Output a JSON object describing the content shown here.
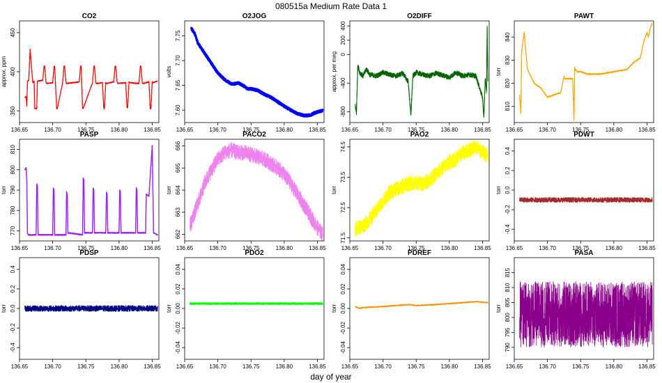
{
  "figure": {
    "title": "080515a   Medium Rate Data 1",
    "xlabel": "day of year"
  },
  "chart_data": [
    {
      "type": "line",
      "title": "CO2",
      "ylabel": "approx. ppm",
      "color": "#ff0000",
      "xlim": [
        136.65,
        136.86
      ],
      "ylim": [
        335,
        465
      ],
      "yticks": [
        350,
        400,
        450
      ],
      "ytick_labels": [
        "350",
        "400",
        "450"
      ],
      "xticks": [
        136.65,
        136.7,
        136.75,
        136.8,
        136.85
      ],
      "xtick_labels": [
        "136.65",
        "136.70",
        "136.75",
        "136.80",
        "136.85"
      ],
      "x": [
        136.658,
        136.66,
        136.661,
        136.662,
        136.664,
        136.666,
        136.67,
        136.672,
        136.673,
        136.676,
        136.677,
        136.685,
        136.687,
        136.688,
        136.69,
        136.691,
        136.7,
        136.702,
        136.703,
        136.706,
        136.707,
        136.715,
        136.717,
        136.718,
        136.72,
        136.721,
        136.74,
        136.742,
        136.743,
        136.745,
        136.746,
        136.76,
        136.762,
        136.763,
        136.765,
        136.766,
        136.775,
        136.777,
        136.778,
        136.78,
        136.781,
        136.792,
        136.794,
        136.795,
        136.797,
        136.798,
        136.81,
        136.812,
        136.813,
        136.815,
        136.816,
        136.83,
        136.832,
        136.833,
        136.835,
        136.836,
        136.845,
        136.847,
        136.848,
        136.85,
        136.851,
        136.858
      ],
      "y": [
        367,
        368,
        356,
        388,
        389,
        429,
        386,
        388,
        353,
        353,
        388,
        389,
        407,
        407,
        386,
        385,
        386,
        407,
        407,
        353,
        353,
        386,
        407,
        407,
        386,
        385,
        387,
        407,
        407,
        353,
        353,
        386,
        407,
        407,
        386,
        385,
        386,
        353,
        353,
        386,
        385,
        387,
        407,
        407,
        387,
        385,
        386,
        354,
        354,
        387,
        386,
        385,
        407,
        407,
        386,
        385,
        387,
        353,
        353,
        387,
        386,
        388
      ]
    },
    {
      "type": "line",
      "title": "O2JOG",
      "ylabel": "volts",
      "color": "#0000ff",
      "xlim": [
        136.65,
        136.86
      ],
      "ylim": [
        7.575,
        7.78
      ],
      "yticks": [
        7.6,
        7.65,
        7.7,
        7.75
      ],
      "ytick_labels": [
        "7.60",
        "7.65",
        "7.70",
        "7.75"
      ],
      "xticks": [
        136.65,
        136.7,
        136.75,
        136.8,
        136.85
      ],
      "xtick_labels": [
        "136.65",
        "136.70",
        "136.75",
        "136.80",
        "136.85"
      ],
      "x": [
        136.66,
        136.665,
        136.67,
        136.68,
        136.69,
        136.7,
        136.71,
        136.72,
        136.725,
        136.73,
        136.735,
        136.74,
        136.745,
        136.75,
        136.76,
        136.77,
        136.78,
        136.79,
        136.8,
        136.81,
        136.82,
        136.83,
        136.84,
        136.845,
        136.85,
        136.855,
        136.858
      ],
      "y": [
        7.765,
        7.755,
        7.735,
        7.715,
        7.695,
        7.675,
        7.662,
        7.653,
        7.653,
        7.655,
        7.652,
        7.648,
        7.643,
        7.643,
        7.64,
        7.632,
        7.626,
        7.617,
        7.608,
        7.6,
        7.593,
        7.589,
        7.59,
        7.594,
        7.596,
        7.598,
        7.599
      ]
    },
    {
      "type": "line",
      "title": "O2DIFF",
      "ylabel": "approx. per meg",
      "color": "#006400",
      "xlim": [
        136.65,
        136.86
      ],
      "ylim": [
        -950,
        470
      ],
      "yticks": [
        -800,
        -400,
        0,
        200,
        400
      ],
      "ytick_labels": [
        "-800",
        "-400",
        "0",
        "200",
        "400"
      ],
      "xticks": [
        136.65,
        136.7,
        136.75,
        136.8,
        136.85
      ],
      "xtick_labels": [
        "136.65",
        "136.70",
        "136.75",
        "136.80",
        "136.85"
      ],
      "x": [
        136.658,
        136.66,
        136.662,
        136.665,
        136.67,
        136.675,
        136.68,
        136.69,
        136.7,
        136.71,
        136.72,
        136.73,
        136.738,
        136.742,
        136.745,
        136.75,
        136.76,
        136.77,
        136.78,
        136.79,
        136.8,
        136.81,
        136.82,
        136.83,
        136.84,
        136.85,
        136.852,
        136.854,
        136.856,
        136.857,
        136.858
      ],
      "y": [
        -700,
        -820,
        -150,
        -250,
        -300,
        -200,
        -280,
        -300,
        -250,
        -280,
        -300,
        -260,
        -380,
        -850,
        -300,
        -250,
        -280,
        -300,
        -260,
        -290,
        -320,
        -250,
        -300,
        -280,
        -300,
        -600,
        -880,
        -350,
        -500,
        380,
        -350
      ]
    },
    {
      "type": "line",
      "title": "PAWT",
      "ylabel": "torr",
      "color": "#ffa500",
      "xlim": [
        136.65,
        136.86
      ],
      "ylim": [
        803,
        847
      ],
      "yticks": [
        810,
        820,
        830,
        840
      ],
      "ytick_labels": [
        "810",
        "820",
        "830",
        "840"
      ],
      "xticks": [
        136.65,
        136.7,
        136.75,
        136.8,
        136.85
      ],
      "xtick_labels": [
        "136.65",
        "136.70",
        "136.75",
        "136.80",
        "136.85"
      ],
      "x": [
        136.658,
        136.66,
        136.661,
        136.663,
        136.665,
        136.667,
        136.67,
        136.68,
        136.69,
        136.7,
        136.71,
        136.72,
        136.725,
        136.726,
        136.738,
        136.74,
        136.741,
        136.742,
        136.745,
        136.75,
        136.76,
        136.78,
        136.8,
        136.82,
        136.83,
        136.835,
        136.84,
        136.845,
        136.85,
        136.852,
        136.855,
        136.858
      ],
      "y": [
        815,
        807,
        833,
        838,
        842,
        835,
        826,
        820,
        818,
        814,
        815,
        816,
        823,
        822,
        822,
        804,
        827,
        826,
        825,
        825,
        824,
        824,
        825,
        826,
        829,
        830,
        831,
        838,
        842,
        840,
        844,
        846
      ]
    },
    {
      "type": "line",
      "title": "PASP",
      "ylabel": "torr",
      "color": "#a020f0",
      "xlim": [
        136.65,
        136.86
      ],
      "ylim": [
        765,
        815
      ],
      "yticks": [
        770,
        780,
        790,
        800,
        810
      ],
      "ytick_labels": [
        "770",
        "780",
        "790",
        "800",
        "810"
      ],
      "xticks": [
        136.65,
        136.7,
        136.75,
        136.8,
        136.85
      ],
      "xtick_labels": [
        "136.65",
        "136.70",
        "136.75",
        "136.80",
        "136.85"
      ],
      "x": [
        136.658,
        136.66,
        136.661,
        136.662,
        136.663,
        136.675,
        136.676,
        136.677,
        136.678,
        136.7,
        136.701,
        136.702,
        136.703,
        136.72,
        136.721,
        136.722,
        136.723,
        136.745,
        136.746,
        136.747,
        136.748,
        136.76,
        136.761,
        136.762,
        136.763,
        136.78,
        136.781,
        136.782,
        136.783,
        136.8,
        136.801,
        136.802,
        136.803,
        136.825,
        136.826,
        136.827,
        136.828,
        136.84,
        136.841,
        136.845,
        136.85,
        136.852,
        136.858
      ],
      "y": [
        800,
        801,
        795,
        769,
        768,
        768,
        793,
        792,
        768,
        768,
        791,
        790,
        768,
        768,
        789,
        788,
        769,
        768,
        796,
        795,
        769,
        769,
        791,
        790,
        769,
        769,
        789,
        788,
        769,
        769,
        790,
        789,
        769,
        769,
        791,
        790,
        769,
        769,
        788,
        787,
        812,
        769,
        768
      ]
    },
    {
      "type": "line",
      "title": "PACO2",
      "ylabel": "torr",
      "color": "#ee82ee",
      "xlim": [
        136.65,
        136.86
      ],
      "ylim": [
        661.7,
        666.3
      ],
      "yticks": [
        662,
        663,
        664,
        665,
        666
      ],
      "ytick_labels": [
        "662",
        "663",
        "664",
        "665",
        "666"
      ],
      "xticks": [
        136.65,
        136.7,
        136.75,
        136.8,
        136.85
      ],
      "xtick_labels": [
        "136.65",
        "136.70",
        "136.75",
        "136.80",
        "136.85"
      ],
      "x": [
        136.658,
        136.67,
        136.68,
        136.69,
        136.7,
        136.71,
        136.72,
        136.73,
        136.74,
        136.75,
        136.76,
        136.77,
        136.78,
        136.79,
        136.8,
        136.81,
        136.82,
        136.83,
        136.84,
        136.85,
        136.858
      ],
      "y": [
        662.4,
        663.4,
        664.3,
        664.9,
        665.4,
        665.7,
        665.8,
        665.7,
        665.7,
        665.6,
        665.5,
        665.4,
        665.2,
        665.0,
        664.7,
        664.3,
        663.8,
        663.3,
        662.8,
        662.3,
        662.0
      ]
    },
    {
      "type": "line",
      "title": "PAO2",
      "ylabel": "torr",
      "color": "#ffff00",
      "xlim": [
        136.65,
        136.86
      ],
      "ylim": [
        71.4,
        74.75
      ],
      "yticks": [
        71.5,
        72.5,
        73.5,
        74.5
      ],
      "ytick_labels": [
        "71.5",
        "72.5",
        "73.5",
        "74.5"
      ],
      "xticks": [
        136.65,
        136.7,
        136.75,
        136.8,
        136.85
      ],
      "xtick_labels": [
        "136.65",
        "136.70",
        "136.75",
        "136.80",
        "136.85"
      ],
      "x": [
        136.658,
        136.67,
        136.68,
        136.69,
        136.7,
        136.71,
        136.72,
        136.73,
        136.74,
        136.75,
        136.76,
        136.77,
        136.78,
        136.79,
        136.8,
        136.81,
        136.82,
        136.83,
        136.84,
        136.85,
        136.858
      ],
      "y": [
        71.8,
        71.9,
        72.1,
        72.4,
        72.7,
        73.0,
        73.1,
        73.2,
        73.3,
        73.3,
        73.3,
        73.4,
        73.6,
        73.8,
        74.0,
        74.1,
        74.3,
        74.4,
        74.5,
        74.3,
        74.2
      ]
    },
    {
      "type": "line",
      "title": "PDWT",
      "ylabel": "torr",
      "color": "#a52a2a",
      "xlim": [
        136.65,
        136.86
      ],
      "ylim": [
        -0.52,
        0.52
      ],
      "yticks": [
        -0.4,
        -0.2,
        0.0,
        0.2,
        0.4
      ],
      "ytick_labels": [
        "-0.4",
        "-0.2",
        "0.0",
        "0.2",
        "0.4"
      ],
      "xticks": [
        136.65,
        136.7,
        136.75,
        136.8,
        136.85
      ],
      "xtick_labels": [
        "136.65",
        "136.70",
        "136.75",
        "136.80",
        "136.85"
      ],
      "x": [
        136.658,
        136.858
      ],
      "y": [
        -0.1,
        -0.1
      ]
    },
    {
      "type": "line",
      "title": "PDSP",
      "ylabel": "torr",
      "color": "#000080",
      "xlim": [
        136.65,
        136.86
      ],
      "ylim": [
        -0.52,
        0.52
      ],
      "yticks": [
        -0.4,
        -0.2,
        0.0,
        0.2,
        0.4
      ],
      "ytick_labels": [
        "-0.4",
        "-0.2",
        "0.0",
        "0.2",
        "0.4"
      ],
      "xticks": [
        136.65,
        136.7,
        136.75,
        136.8,
        136.85
      ],
      "xtick_labels": [
        "136.65",
        "136.70",
        "136.75",
        "136.80",
        "136.85"
      ],
      "x": [
        136.658,
        136.858
      ],
      "y": [
        0.0,
        0.0
      ]
    },
    {
      "type": "line",
      "title": "PDO2",
      "ylabel": "torr",
      "color": "#00ff00",
      "xlim": [
        136.65,
        136.86
      ],
      "ylim": [
        -0.052,
        0.052
      ],
      "yticks": [
        -0.04,
        -0.02,
        0.0,
        0.02,
        0.04
      ],
      "ytick_labels": [
        "-0.04",
        "-0.02",
        "0.00",
        "0.02",
        "0.04"
      ],
      "xticks": [
        136.65,
        136.7,
        136.75,
        136.8,
        136.85
      ],
      "xtick_labels": [
        "136.65",
        "136.70",
        "136.75",
        "136.80",
        "136.85"
      ],
      "x": [
        136.658,
        136.858
      ],
      "y": [
        0.005,
        0.005
      ]
    },
    {
      "type": "line",
      "title": "PDREF",
      "ylabel": "torr",
      "color": "#ff8c00",
      "xlim": [
        136.65,
        136.86
      ],
      "ylim": [
        -0.052,
        0.052
      ],
      "yticks": [
        -0.04,
        -0.02,
        0.0,
        0.02,
        0.04
      ],
      "ytick_labels": [
        "-0.04",
        "-0.02",
        "0.00",
        "0.02",
        "0.04"
      ],
      "xticks": [
        136.65,
        136.7,
        136.75,
        136.8,
        136.85
      ],
      "xtick_labels": [
        "136.65",
        "136.70",
        "136.75",
        "136.80",
        "136.85"
      ],
      "x": [
        136.658,
        136.665,
        136.67,
        136.7,
        136.72,
        136.74,
        136.75,
        136.78,
        136.8,
        136.82,
        136.84,
        136.858
      ],
      "y": [
        0.002,
        0.0,
        0.001,
        0.002,
        0.003,
        0.004,
        0.003,
        0.004,
        0.005,
        0.006,
        0.007,
        0.006
      ]
    },
    {
      "type": "line",
      "title": "PASA",
      "ylabel": "torr",
      "color": "#8b008b",
      "xlim": [
        136.65,
        136.86
      ],
      "ylim": [
        786,
        820
      ],
      "yticks": [
        790,
        795,
        800,
        805,
        810,
        815
      ],
      "ytick_labels": [
        "790",
        "795",
        "800",
        "805",
        "810",
        "815"
      ],
      "xticks": [
        136.65,
        136.7,
        136.75,
        136.8,
        136.85
      ],
      "xtick_labels": [
        "136.65",
        "136.70",
        "136.75",
        "136.80",
        "136.85"
      ],
      "x": [
        136.658,
        136.858
      ],
      "y": [
        801,
        801
      ]
    }
  ]
}
